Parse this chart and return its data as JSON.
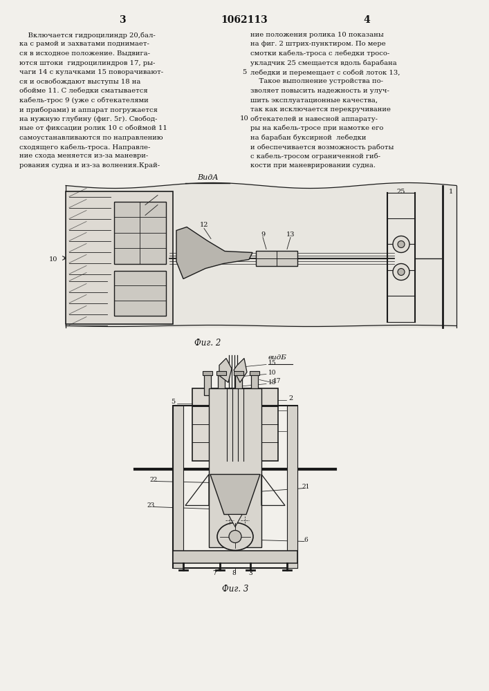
{
  "bg_color": "#f2f0eb",
  "page_color": "#f2f0eb",
  "text_color": "#111111",
  "line_color": "#1a1a1a",
  "page_number_left": "3",
  "page_number_center": "1062113",
  "page_number_right": "4",
  "left_column_text": [
    "    Включается гидроцилиндр 20,бал-",
    "ка с рамой и захватами поднимает-",
    "ся в исходное положение. Выдвига-",
    "ются штоки  гидроцилиндров 17, ры-",
    "чаги 14 с кулачками 15 поворачивают-",
    "ся и освобождают выступы 18 на",
    "обойме 11. С лебедки сматывается",
    "кабель-трос 9 (уже с обтекателями",
    "и приборами) и аппарат погружается",
    "на нужную глубину (фиг. 5г). Свобод-",
    "ные от фиксации ролик 10 с обоймой 11"
  ],
  "center_line_number": "5",
  "center_line_number2": "10",
  "right_column_text": [
    "ние положения ролика 10 показаны",
    "на фиг. 2 штрих-пунктиром. По мере",
    "смотки кабель-троса с лебедки тросо-",
    "укладчик 25 смещается вдоль барабана",
    "лебедки и перемещает с собой лоток 13,",
    "    Такое выполнение устройства по-",
    "зволяет повысить надежность и улуч-",
    "шить эксплуатационные качества,",
    "так как исключается перекручивание",
    "обтекателей и навесной аппарату-",
    "ры на кабель-тросе при намотке его"
  ],
  "left_column_text2": [
    "самоустанавливаются по направлению",
    "сходящего кабель-троса. Направле-",
    "ние схода меняется из-за маневри-",
    "рования судна и из-за волнения.Край-"
  ],
  "right_column_text2": [
    "на барабан буксирной  лебедки",
    "и обеспечивается возможность работы",
    "с кабель-тросом ограниченной гиб-",
    "кости при маневрировании судна."
  ],
  "vid_a_label": "ВидА",
  "fig2_label": "Фиг. 2",
  "vid_b_label": "видБ",
  "fig3_label": "Фиг. 3"
}
